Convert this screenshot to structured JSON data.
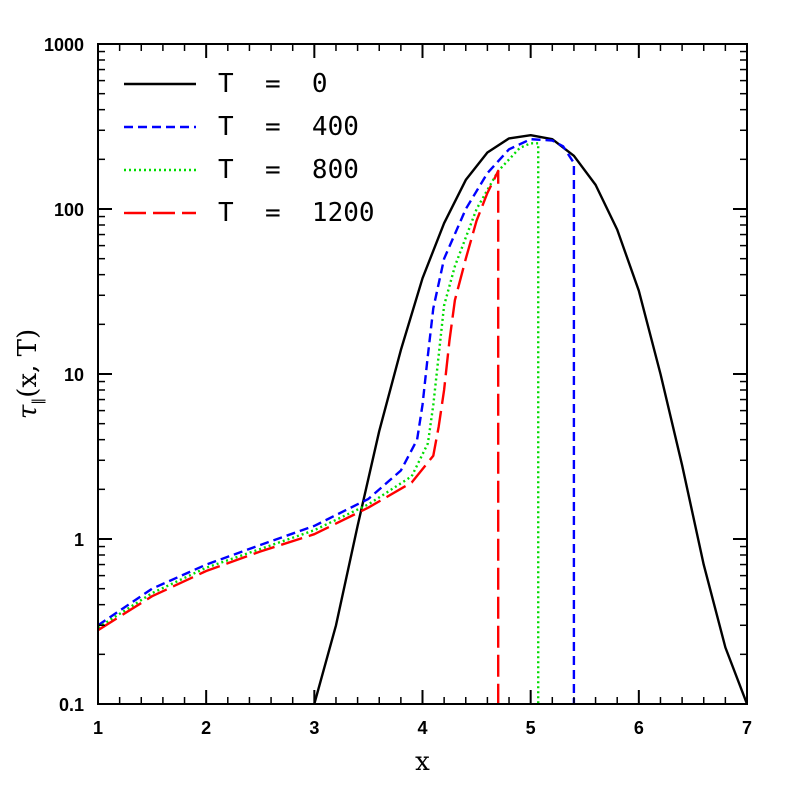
{
  "chart_data": {
    "type": "line",
    "xlabel": "x",
    "ylabel": "τ‖(x, T)",
    "ylabel_parts": {
      "tau": "τ",
      "sub": "‖",
      "args": "(x, T)"
    },
    "xlim": [
      1,
      7
    ],
    "ylim": [
      0.1,
      1000
    ],
    "yscale": "log",
    "x_ticks": [
      "1",
      "2",
      "3",
      "4",
      "5",
      "6",
      "7"
    ],
    "y_ticks": [
      "0.1",
      "1",
      "10",
      "100",
      "1000"
    ],
    "grid": false,
    "legend_placement": "top-left",
    "series": [
      {
        "name": "T  =  0",
        "color": "#000000",
        "dash": "solid",
        "points": [
          [
            3.0,
            0.1
          ],
          [
            3.2,
            0.3
          ],
          [
            3.4,
            1.2
          ],
          [
            3.6,
            4.5
          ],
          [
            3.8,
            14
          ],
          [
            4.0,
            38
          ],
          [
            4.2,
            82
          ],
          [
            4.4,
            150
          ],
          [
            4.6,
            220
          ],
          [
            4.8,
            268
          ],
          [
            5.0,
            280
          ],
          [
            5.2,
            265
          ],
          [
            5.4,
            210
          ],
          [
            5.6,
            140
          ],
          [
            5.8,
            75
          ],
          [
            6.0,
            32
          ],
          [
            6.2,
            10
          ],
          [
            6.4,
            2.8
          ],
          [
            6.6,
            0.7
          ],
          [
            6.8,
            0.22
          ],
          [
            7.0,
            0.1
          ]
        ]
      },
      {
        "name": "T  =  400",
        "color": "#0000ff",
        "dash": "short-dash",
        "points": [
          [
            1.0,
            0.3
          ],
          [
            1.5,
            0.5
          ],
          [
            2.0,
            0.7
          ],
          [
            2.5,
            0.92
          ],
          [
            3.0,
            1.2
          ],
          [
            3.5,
            1.75
          ],
          [
            3.8,
            2.6
          ],
          [
            3.95,
            4.0
          ],
          [
            4.0,
            6.5
          ],
          [
            4.05,
            13
          ],
          [
            4.1,
            25
          ],
          [
            4.2,
            50
          ],
          [
            4.4,
            100
          ],
          [
            4.6,
            165
          ],
          [
            4.8,
            230
          ],
          [
            5.0,
            265
          ],
          [
            5.2,
            260
          ],
          [
            5.3,
            240
          ],
          [
            5.4,
            190
          ],
          [
            5.4,
            0.1
          ]
        ]
      },
      {
        "name": "T  =  800",
        "color": "#00dd00",
        "dash": "dotted",
        "points": [
          [
            1.0,
            0.29
          ],
          [
            1.5,
            0.47
          ],
          [
            2.0,
            0.67
          ],
          [
            2.5,
            0.87
          ],
          [
            3.0,
            1.13
          ],
          [
            3.5,
            1.62
          ],
          [
            3.9,
            2.4
          ],
          [
            4.05,
            3.8
          ],
          [
            4.1,
            6.5
          ],
          [
            4.15,
            13
          ],
          [
            4.2,
            26
          ],
          [
            4.3,
            45
          ],
          [
            4.5,
            100
          ],
          [
            4.7,
            170
          ],
          [
            4.9,
            235
          ],
          [
            5.0,
            250
          ],
          [
            5.07,
            250
          ],
          [
            5.07,
            0.1
          ]
        ]
      },
      {
        "name": "T  =  1200",
        "color": "#ff0000",
        "dash": "long-dash",
        "points": [
          [
            1.0,
            0.28
          ],
          [
            1.5,
            0.45
          ],
          [
            2.0,
            0.64
          ],
          [
            2.5,
            0.84
          ],
          [
            3.0,
            1.07
          ],
          [
            3.5,
            1.55
          ],
          [
            3.9,
            2.2
          ],
          [
            4.1,
            3.2
          ],
          [
            4.15,
            4.8
          ],
          [
            4.2,
            8
          ],
          [
            4.25,
            16
          ],
          [
            4.3,
            28
          ],
          [
            4.4,
            50
          ],
          [
            4.5,
            85
          ],
          [
            4.6,
            125
          ],
          [
            4.7,
            170
          ],
          [
            4.7,
            0.1
          ]
        ]
      }
    ]
  }
}
